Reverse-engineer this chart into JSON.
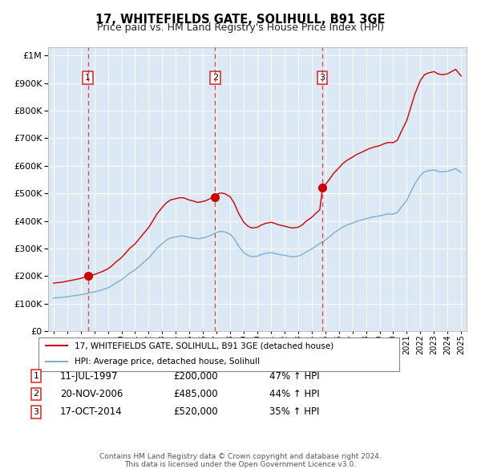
{
  "title": "17, WHITEFIELDS GATE, SOLIHULL, B91 3GE",
  "subtitle": "Price paid vs. HM Land Registry's House Price Index (HPI)",
  "legend_property": "17, WHITEFIELDS GATE, SOLIHULL, B91 3GE (detached house)",
  "legend_hpi": "HPI: Average price, detached house, Solihull",
  "footer_line1": "Contains HM Land Registry data © Crown copyright and database right 2024.",
  "footer_line2": "This data is licensed under the Open Government Licence v3.0.",
  "sale_dates_label": [
    "11-JUL-1997",
    "20-NOV-2006",
    "17-OCT-2014"
  ],
  "sale_prices_label": [
    "£200,000",
    "£485,000",
    "£520,000"
  ],
  "sale_pct_label": [
    "47% ↑ HPI",
    "44% ↑ HPI",
    "35% ↑ HPI"
  ],
  "sale_years": [
    1997.53,
    2006.89,
    2014.79
  ],
  "sale_prices": [
    200000,
    485000,
    520000
  ],
  "ylim_max": 1000000,
  "xlim_start": 1994.6,
  "xlim_end": 2025.4,
  "plot_bg_color": "#dce9f5",
  "red_line_color": "#cc0000",
  "blue_line_color": "#7bafd4",
  "vline_color": "#dd3333",
  "marker_color": "#cc0000"
}
